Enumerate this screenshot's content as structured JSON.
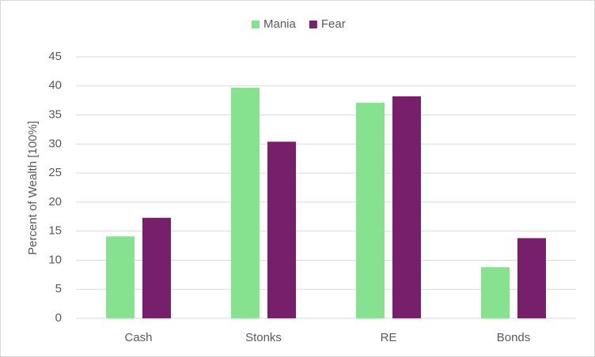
{
  "chart_data": {
    "type": "bar",
    "y_label": "Percent of Wealth [100%]",
    "categories": [
      "Cash",
      "Stonks",
      "RE",
      "Bonds"
    ],
    "series": [
      {
        "name": "Mania",
        "color": "#86e28f",
        "values": [
          14.1,
          39.7,
          37.1,
          8.8
        ]
      },
      {
        "name": "Fear",
        "color": "#781f6c",
        "values": [
          17.3,
          30.4,
          38.2,
          13.8
        ]
      }
    ],
    "ylim": [
      0,
      45
    ],
    "yticks": [
      0,
      5,
      10,
      15,
      20,
      25,
      30,
      35,
      40,
      45
    ],
    "grid": true,
    "legend": "top"
  }
}
